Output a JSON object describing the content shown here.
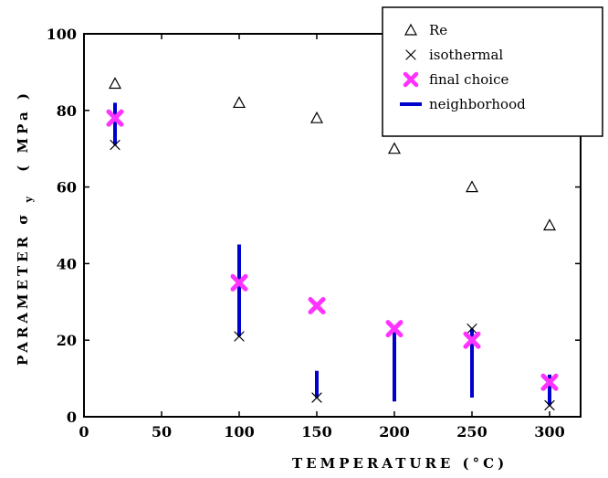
{
  "chart_data": {
    "type": "scatter",
    "xlabel": "TEMPERATURE (°C)",
    "ylabel": "PARAMETER σ",
    "ylabel_subscript": "y",
    "ylabel_unit": "( MPa )",
    "xlim": [
      0,
      320
    ],
    "ylim": [
      0,
      100
    ],
    "xticks": [
      0,
      50,
      100,
      150,
      200,
      250,
      300
    ],
    "yticks": [
      0,
      20,
      40,
      60,
      80,
      100
    ],
    "grid": false,
    "legend_position": "top-right",
    "colors": {
      "Re": "#000000",
      "isothermal": "#000000",
      "final choice": "#ff33ff",
      "neighborhood": "#0000cc"
    },
    "series": [
      {
        "name": "Re",
        "marker": "triangle",
        "x": [
          20,
          100,
          150,
          200,
          250,
          300
        ],
        "y": [
          87,
          82,
          78,
          70,
          60,
          50
        ]
      },
      {
        "name": "isothermal",
        "marker": "x",
        "x": [
          20,
          100,
          150,
          200,
          250,
          300
        ],
        "y": [
          71,
          21,
          5,
          23,
          23,
          3
        ]
      },
      {
        "name": "final choice",
        "marker": "bold-x",
        "x": [
          20,
          100,
          150,
          200,
          250,
          300
        ],
        "y": [
          78,
          35,
          29,
          23,
          20,
          9
        ]
      },
      {
        "name": "neighborhood",
        "marker": "vertical-line",
        "x": [
          20,
          100,
          150,
          200,
          250,
          300
        ],
        "y_low": [
          71,
          21,
          5,
          4,
          5,
          3
        ],
        "y_high": [
          82,
          45,
          12,
          23,
          23,
          11
        ]
      }
    ]
  }
}
